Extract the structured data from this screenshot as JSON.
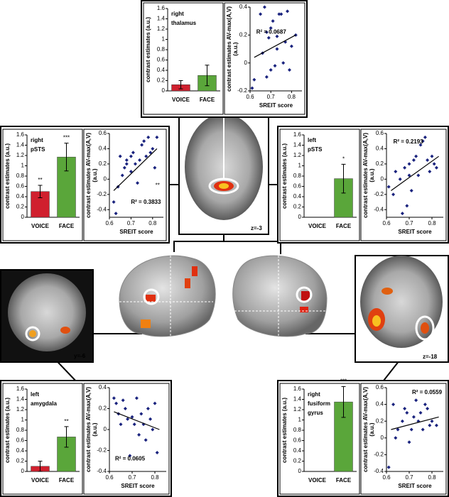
{
  "chart_data": [
    {
      "type": "bar",
      "title": [
        "right",
        "thalamus"
      ],
      "ylabel": "contrast estimates (a.u.)",
      "categories": [
        "VOICE",
        "FACE"
      ],
      "values": [
        0.12,
        0.3
      ],
      "errors": [
        0.08,
        0.2
      ],
      "annotations": [
        null,
        null
      ],
      "colors": [
        "#d0202e",
        "#5aa63a"
      ],
      "ylim": [
        0,
        1.6
      ],
      "yticks": [
        0,
        0.2,
        0.4,
        0.6,
        0.8,
        1,
        1.2,
        1.4,
        1.6
      ]
    },
    {
      "type": "scatter",
      "ylabel": [
        "contrast estimates AV-max(A,V)",
        "(a.u.)"
      ],
      "xlabel": "SREIT score",
      "x": [
        0.61,
        0.62,
        0.65,
        0.66,
        0.67,
        0.68,
        0.69,
        0.7,
        0.7,
        0.71,
        0.72,
        0.73,
        0.74,
        0.75,
        0.76,
        0.77,
        0.78,
        0.79,
        0.8,
        0.82,
        0.68,
        0.73
      ],
      "y": [
        -0.18,
        -0.12,
        0.35,
        0.07,
        0.4,
        0.22,
        0.18,
        0.25,
        -0.05,
        0.3,
        -0.02,
        0.19,
        0.35,
        0.35,
        0,
        0.15,
        0.37,
        -0.05,
        0.12,
        0.2,
        -0.1,
        0.1
      ],
      "color": "#1a237e",
      "fit": {
        "x": [
          0.62,
          0.82
        ],
        "y": [
          0.04,
          0.2
        ]
      },
      "r2_label": "R² = 0.0687",
      "xlim": [
        0.6,
        0.85
      ],
      "xticks": [
        0.6,
        0.7,
        0.8
      ],
      "ylim": [
        -0.2,
        0.4
      ],
      "yticks": [
        -0.2,
        0,
        0.2,
        0.4
      ]
    },
    {
      "type": "bar",
      "title": [
        "right",
        "pSTS"
      ],
      "ylabel": "contrast estimates (a.u.)",
      "categories": [
        "VOICE",
        "FACE"
      ],
      "values": [
        0.5,
        1.17
      ],
      "errors": [
        0.12,
        0.27
      ],
      "annotations": [
        "**",
        "***"
      ],
      "colors": [
        "#d0202e",
        "#5aa63a"
      ],
      "ylim": [
        0,
        1.6
      ],
      "yticks": [
        0,
        0.2,
        0.4,
        0.6,
        0.8,
        1,
        1.2,
        1.4,
        1.6
      ]
    },
    {
      "type": "scatter",
      "ylabel": [
        "contrast estimates AV-max(A,V)",
        "(a.u.)"
      ],
      "xlabel": "SREIT score",
      "x": [
        0.62,
        0.63,
        0.64,
        0.65,
        0.66,
        0.67,
        0.68,
        0.68,
        0.7,
        0.7,
        0.71,
        0.72,
        0.73,
        0.74,
        0.75,
        0.76,
        0.77,
        0.78,
        0.79,
        0.8,
        0.81,
        0.82
      ],
      "y": [
        -0.3,
        -0.45,
        -0.1,
        0.3,
        0.05,
        0.15,
        0.2,
        0.25,
        0.3,
        0.1,
        0.35,
        0.2,
        -0.05,
        0.25,
        0.45,
        0.5,
        0.3,
        0.55,
        0.35,
        0.4,
        0.15,
        0.55
      ],
      "color": "#1a237e",
      "fit": {
        "x": [
          0.62,
          0.82
        ],
        "y": [
          -0.15,
          0.4
        ]
      },
      "r2_label": "R² = 0.3833",
      "significance": "**",
      "xlim": [
        0.6,
        0.85
      ],
      "xticks": [
        0.6,
        0.7,
        0.8
      ],
      "ylim": [
        -0.5,
        0.6
      ],
      "yticks": [
        -0.4,
        -0.2,
        0,
        0.2,
        0.4,
        0.6
      ]
    },
    {
      "type": "bar",
      "title": [
        "left",
        "pSTS"
      ],
      "ylabel": "contrast estimates (a.u.)",
      "categories": [
        "VOICE",
        "FACE"
      ],
      "values": [
        0,
        0.75
      ],
      "errors": [
        null,
        0.28
      ],
      "annotations": [
        null,
        "*"
      ],
      "colors": [
        "#d0202e",
        "#5aa63a"
      ],
      "ylim": [
        0,
        1.6
      ],
      "yticks": [
        0,
        0.2,
        0.4,
        0.6,
        0.8,
        1,
        1.2,
        1.4,
        1.6
      ]
    },
    {
      "type": "scatter",
      "ylabel": [
        "contrast estimates AV-max(A,V)",
        "(a.u.)"
      ],
      "xlabel": "SREIT score",
      "x": [
        0.61,
        0.63,
        0.64,
        0.66,
        0.67,
        0.68,
        0.69,
        0.7,
        0.7,
        0.71,
        0.72,
        0.73,
        0.74,
        0.75,
        0.76,
        0.77,
        0.78,
        0.79,
        0.8,
        0.81,
        0.82
      ],
      "y": [
        -0.1,
        -0.2,
        0.1,
        0,
        -0.45,
        0.15,
        -0.35,
        0.05,
        0.2,
        -0.15,
        0.25,
        0.3,
        0.05,
        0.45,
        0.5,
        0.55,
        0.25,
        0.1,
        0.3,
        0.2,
        0.15
      ],
      "color": "#1a237e",
      "fit": {
        "x": [
          0.62,
          0.83
        ],
        "y": [
          -0.15,
          0.3
        ]
      },
      "r2_label": "R² = 0.2193",
      "xlim": [
        0.6,
        0.85
      ],
      "xticks": [
        0.6,
        0.7,
        0.8
      ],
      "ylim": [
        -0.5,
        0.6
      ],
      "yticks": [
        -0.4,
        -0.2,
        0,
        0.2,
        0.4,
        0.6
      ]
    },
    {
      "type": "bar",
      "title": [
        "left",
        "amygdala"
      ],
      "ylabel": "contrast estimates (a.u.)",
      "categories": [
        "VOICE",
        "FACE"
      ],
      "values": [
        0.1,
        0.67
      ],
      "errors": [
        0.1,
        0.2
      ],
      "annotations": [
        null,
        "**"
      ],
      "colors": [
        "#d0202e",
        "#5aa63a"
      ],
      "ylim": [
        0,
        1.6
      ],
      "yticks": [
        0,
        0.2,
        0.4,
        0.6,
        0.8,
        1,
        1.2,
        1.4,
        1.6
      ]
    },
    {
      "type": "scatter",
      "ylabel": [
        "contrast estimates AV-max(A,V)",
        "(a.u.)"
      ],
      "xlabel": "SREIT score",
      "x": [
        0.62,
        0.63,
        0.64,
        0.65,
        0.66,
        0.67,
        0.68,
        0.69,
        0.7,
        0.71,
        0.72,
        0.73,
        0.74,
        0.75,
        0.76,
        0.77,
        0.78,
        0.79,
        0.8,
        0.81
      ],
      "y": [
        0.3,
        0.25,
        0.15,
        0.05,
        0.28,
        0.2,
        0.1,
        -0.25,
        0.12,
        0.05,
        0.3,
        -0.05,
        0.15,
        0.05,
        -0.1,
        0.2,
        0.1,
        0,
        0.25,
        -0.22
      ],
      "color": "#1a237e",
      "fit": {
        "x": [
          0.62,
          0.82
        ],
        "y": [
          0.17,
          0
        ]
      },
      "r2_label": "R² = 0.0605",
      "xlim": [
        0.6,
        0.85
      ],
      "xticks": [
        0.6,
        0.7,
        0.8
      ],
      "ylim": [
        -0.4,
        0.4
      ],
      "yticks": [
        -0.4,
        -0.2,
        0,
        0.2,
        0.4
      ]
    },
    {
      "type": "bar",
      "title": [
        "right",
        "fusiform",
        "gyrus"
      ],
      "ylabel": "contrast estimates (a.u.)",
      "categories": [
        "VOICE",
        "FACE"
      ],
      "values": [
        0,
        1.35
      ],
      "errors": [
        null,
        0.3
      ],
      "annotations": [
        null,
        "***"
      ],
      "colors": [
        "#d0202e",
        "#5aa63a"
      ],
      "ylim": [
        0,
        1.6
      ],
      "yticks": [
        0,
        0.2,
        0.4,
        0.6,
        0.8,
        1,
        1.2,
        1.4,
        1.6
      ]
    },
    {
      "type": "scatter",
      "ylabel": [
        "contrast estimates AV-max(A,V)",
        "(a.u.)"
      ],
      "xlabel": "SREIT score",
      "x": [
        0.61,
        0.63,
        0.64,
        0.65,
        0.67,
        0.68,
        0.69,
        0.7,
        0.71,
        0.72,
        0.73,
        0.74,
        0.75,
        0.76,
        0.77,
        0.78,
        0.79,
        0.8,
        0.82
      ],
      "y": [
        -0.35,
        0.4,
        0,
        0.1,
        0.2,
        0.35,
        0.3,
        -0.05,
        0.1,
        0.25,
        0.45,
        0.2,
        0.3,
        0.1,
        0.4,
        0.35,
        0.15,
        0.2,
        0.15
      ],
      "color": "#1a237e",
      "fit": {
        "x": [
          0.62,
          0.83
        ],
        "y": [
          0.1,
          0.25
        ]
      },
      "r2_label": "R² = 0.0559",
      "xlim": [
        0.6,
        0.85
      ],
      "xticks": [
        0.6,
        0.7,
        0.8
      ],
      "ylim": [
        -0.4,
        0.6
      ],
      "yticks": [
        -0.4,
        -0.2,
        0,
        0.2,
        0.4,
        0.6
      ]
    }
  ],
  "image_labels": [
    "z=-3",
    "y=-6",
    "z=-18"
  ]
}
